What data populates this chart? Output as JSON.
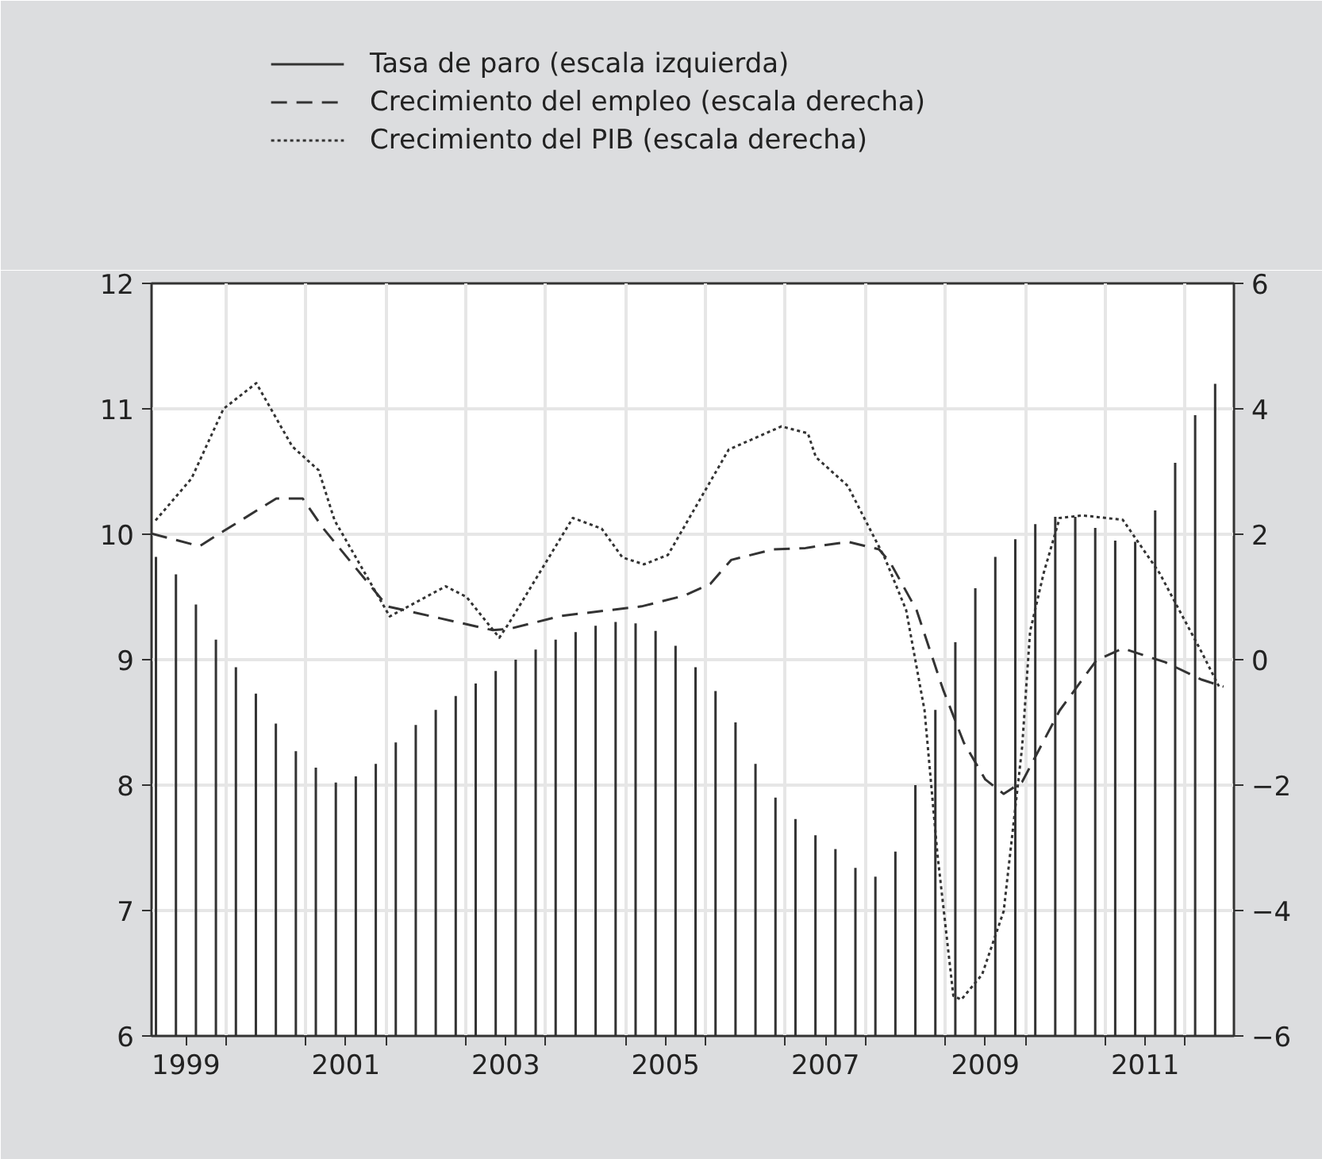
{
  "chart_data": {
    "type": "bar",
    "xlim": [
      1999.07,
      2012.61
    ],
    "ylim": [
      6,
      12
    ],
    "yticks": [
      6,
      7,
      8,
      9,
      10,
      11,
      12
    ],
    "y2lim": [
      -6,
      6
    ],
    "y2ticks": [
      -6,
      -4,
      -2,
      0,
      2,
      4,
      6
    ],
    "xticks": [
      {
        "value": 1999.5,
        "label": "1999"
      },
      {
        "value": 2001.5,
        "label": "2001"
      },
      {
        "value": 2003.5,
        "label": "2003"
      },
      {
        "value": 2005.5,
        "label": "2005"
      },
      {
        "value": 2007.5,
        "label": "2007"
      },
      {
        "value": 2009.5,
        "label": "2009"
      },
      {
        "value": 2011.5,
        "label": "2011"
      },
      {
        "value": 2000,
        "label": null
      },
      {
        "value": 2001,
        "label": null
      },
      {
        "value": 2002,
        "label": null
      },
      {
        "value": 2003,
        "label": null
      },
      {
        "value": 2004,
        "label": null
      },
      {
        "value": 2005,
        "label": null
      },
      {
        "value": 2006,
        "label": null
      },
      {
        "value": 2007,
        "label": null
      },
      {
        "value": 2008,
        "label": null
      },
      {
        "value": 2009,
        "label": null
      },
      {
        "value": 2010,
        "label": null
      },
      {
        "value": 2011,
        "label": null
      },
      {
        "value": 2012,
        "label": null
      }
    ],
    "grid": true,
    "legend": "top left",
    "series": [
      {
        "name": "Tasa de paro (escala izquierda)",
        "color": "#333333",
        "x": [
          1999.125,
          1999.375,
          1999.625,
          1999.875,
          2000.125,
          2000.375,
          2000.625,
          2000.875,
          2001.125,
          2001.375,
          2001.625,
          2001.875,
          2002.125,
          2002.375,
          2002.625,
          2002.875,
          2003.125,
          2003.375,
          2003.625,
          2003.875,
          2004.125,
          2004.375,
          2004.625,
          2004.875,
          2005.125,
          2005.375,
          2005.625,
          2005.875,
          2006.125,
          2006.375,
          2006.625,
          2006.875,
          2007.125,
          2007.375,
          2007.625,
          2007.875,
          2008.125,
          2008.375,
          2008.625,
          2008.875,
          2009.125,
          2009.375,
          2009.625,
          2009.875,
          2010.125,
          2010.375,
          2010.625,
          2010.875,
          2011.125,
          2011.375,
          2011.625,
          2011.875,
          2012.125,
          2012.375
        ],
        "values": [
          9.82,
          9.68,
          9.44,
          9.16,
          8.94,
          8.73,
          8.49,
          8.27,
          8.14,
          8.02,
          8.07,
          8.17,
          8.34,
          8.48,
          8.6,
          8.71,
          8.81,
          8.91,
          9.0,
          9.08,
          9.16,
          9.22,
          9.27,
          9.3,
          9.29,
          9.23,
          9.11,
          8.94,
          8.75,
          8.5,
          8.17,
          7.9,
          7.73,
          7.6,
          7.49,
          7.34,
          7.27,
          7.47,
          8.0,
          8.6,
          9.14,
          9.57,
          9.82,
          9.96,
          10.08,
          10.14,
          10.14,
          10.05,
          9.95,
          9.94,
          10.19,
          10.57,
          10.95,
          11.2
        ]
      },
      {
        "name": "Crecimiento del empleo (escala derecha)",
        "type": "line",
        "axis": "y2",
        "line_style": "dashed",
        "color": "#333333",
        "x": [
          1999.07,
          1999.67,
          1999.97,
          2000.63,
          2000.96,
          2001.22,
          2002.02,
          2002.68,
          2003.34,
          2003.54,
          2004.2,
          2005.2,
          2005.73,
          2006.06,
          2006.32,
          2006.85,
          2007.25,
          2007.78,
          2008.17,
          2008.31,
          2008.64,
          2008.97,
          2009.23,
          2009.5,
          2009.73,
          2009.96,
          2010.43,
          2010.89,
          2011.22,
          2011.75,
          2012.21,
          2012.48
        ],
        "values": [
          2.01,
          1.81,
          2.05,
          2.57,
          2.57,
          2.09,
          0.85,
          0.66,
          0.47,
          0.49,
          0.7,
          0.85,
          1.02,
          1.21,
          1.59,
          1.76,
          1.78,
          1.88,
          1.76,
          1.55,
          0.79,
          -0.47,
          -1.32,
          -1.91,
          -2.14,
          -1.95,
          -0.81,
          -0.01,
          0.18,
          -0.04,
          -0.32,
          -0.43
        ]
      },
      {
        "name": "Crecimiento del PIB (escala derecha)",
        "type": "line",
        "axis": "y2",
        "line_style": "dotted",
        "color": "#333333",
        "x": [
          1999.12,
          1999.57,
          1999.97,
          2000.38,
          2000.83,
          2001.16,
          2001.36,
          2002.05,
          2002.75,
          2003.01,
          2003.42,
          2003.54,
          2004.34,
          2004.7,
          2004.96,
          2005.23,
          2005.53,
          2006.29,
          2006.95,
          2007.28,
          2007.38,
          2007.78,
          2008.17,
          2008.24,
          2008.51,
          2008.74,
          2008.9,
          2009.1,
          2009.2,
          2009.46,
          2009.73,
          2009.96,
          2010.06,
          2010.23,
          2010.43,
          2010.72,
          2011.22,
          2011.68,
          2012.21,
          2012.44
        ],
        "values": [
          2.22,
          2.89,
          4.0,
          4.41,
          3.4,
          3.02,
          2.22,
          0.69,
          1.17,
          1.0,
          0.35,
          0.58,
          2.26,
          2.09,
          1.63,
          1.52,
          1.67,
          3.35,
          3.72,
          3.61,
          3.23,
          2.77,
          1.8,
          1.63,
          0.79,
          -0.81,
          -3.09,
          -5.36,
          -5.42,
          -5.02,
          -4.01,
          -1.4,
          0.45,
          1.38,
          2.26,
          2.3,
          2.23,
          1.38,
          0.11,
          -0.47
        ]
      }
    ]
  }
}
